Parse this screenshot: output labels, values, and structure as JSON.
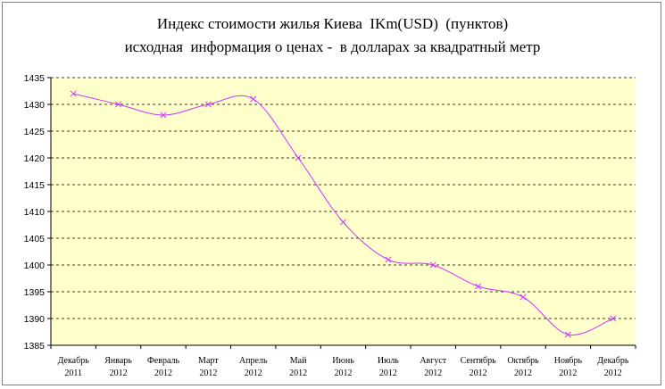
{
  "chart_data": {
    "type": "line",
    "title": "Индекс стоимости жилья Киева  IKm(USD)  (пунктов)",
    "subtitle": "исходная  информация о ценах -  в долларах за квадратный метр",
    "xlabel": "",
    "ylabel": "",
    "categories": [
      [
        "Декабрь",
        "2011"
      ],
      [
        "Январь",
        "2012"
      ],
      [
        "Февраль",
        "2012"
      ],
      [
        "Март",
        "2012"
      ],
      [
        "Апрель",
        "2012"
      ],
      [
        "Май",
        "2012"
      ],
      [
        "Июнь",
        "2012"
      ],
      [
        "Июль",
        "2012"
      ],
      [
        "Август",
        "2012"
      ],
      [
        "Сентябрь",
        "2012"
      ],
      [
        "Октябрь",
        "2012"
      ],
      [
        "Ноябрь",
        "2012"
      ],
      [
        "Декабрь",
        "2012"
      ]
    ],
    "series": [
      {
        "values": [
          1432,
          1430,
          1428,
          1430,
          1431,
          1420,
          1408,
          1401,
          1400,
          1396,
          1394,
          1387,
          1390
        ]
      }
    ],
    "ylim": [
      1385,
      1435
    ],
    "ytick_step": 5,
    "grid": "horizontal dashed",
    "legend": "none",
    "colors": {
      "plot_background": "#ffffcc",
      "line": "#cc33ff",
      "marker": "#cc33ff",
      "grid": "#000000"
    }
  }
}
